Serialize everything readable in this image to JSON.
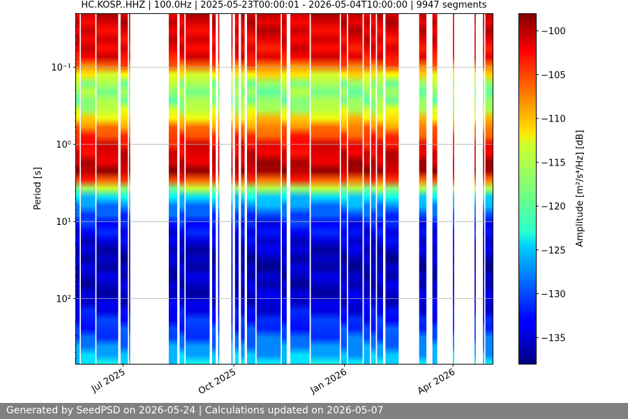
{
  "footer": {
    "text": "Generated by SeedPSD on 2026-05-24 | Calculations updated on 2026-05-07"
  },
  "chart_data": {
    "type": "heatmap",
    "title": "HC.KOSP..HHZ | 100.0Hz | 2025-05-23T00:00:01 - 2026-05-04T10:00:00 | 9947 segments",
    "xlabel": "",
    "ylabel": "Period [s]",
    "x_type": "date",
    "xlim": [
      "2025-05-23",
      "2026-05-04"
    ],
    "x_ticks": [
      {
        "date": "2025-07-01",
        "label": "Jul 2025"
      },
      {
        "date": "2025-10-01",
        "label": "Oct 2025"
      },
      {
        "date": "2026-01-01",
        "label": "Jan 2026"
      },
      {
        "date": "2026-04-01",
        "label": "Apr 2026"
      }
    ],
    "y_scale": "log",
    "y_inverted": true,
    "ylim": [
      0.02,
      700
    ],
    "y_ticks": [
      {
        "value": 0.1,
        "label": "10⁻¹"
      },
      {
        "value": 1,
        "label": "10⁰"
      },
      {
        "value": 10,
        "label": "10¹"
      },
      {
        "value": 100,
        "label": "10²"
      }
    ],
    "grid": "horizontal",
    "colormap": "jet",
    "colorbar": {
      "label": "Amplitude [m²/s⁴/Hz] [dB]",
      "range": [
        -138,
        -98
      ],
      "ticks": [
        -100,
        -105,
        -110,
        -115,
        -120,
        -125,
        -130,
        -135
      ]
    },
    "data_segments": [
      [
        "2025-05-23",
        "2025-05-26"
      ],
      [
        "2025-05-27",
        "2025-06-08"
      ],
      [
        "2025-06-09",
        "2025-06-27"
      ],
      [
        "2025-06-29",
        "2025-07-05"
      ],
      [
        "2025-07-06",
        "2025-07-07"
      ],
      [
        "2025-08-08",
        "2025-08-15"
      ],
      [
        "2025-08-17",
        "2025-08-21"
      ],
      [
        "2025-08-22",
        "2025-09-11"
      ],
      [
        "2025-09-13",
        "2025-09-16"
      ],
      [
        "2025-09-18",
        "2025-09-19"
      ],
      [
        "2025-09-29",
        "2025-09-30"
      ],
      [
        "2025-10-02",
        "2025-10-05"
      ],
      [
        "2025-10-07",
        "2025-10-10"
      ],
      [
        "2025-10-12",
        "2025-10-19"
      ],
      [
        "2025-10-20",
        "2025-11-09"
      ],
      [
        "2025-11-10",
        "2025-11-14"
      ],
      [
        "2025-11-17",
        "2025-12-03"
      ],
      [
        "2025-12-04",
        "2025-12-28"
      ],
      [
        "2025-12-29",
        "2026-01-03"
      ],
      [
        "2026-01-04",
        "2026-01-16"
      ],
      [
        "2026-01-17",
        "2026-01-22"
      ],
      [
        "2026-01-23",
        "2026-01-27"
      ],
      [
        "2026-01-28",
        "2026-02-02"
      ],
      [
        "2026-02-04",
        "2026-02-15"
      ],
      [
        "2026-03-04",
        "2026-03-10"
      ],
      [
        "2026-03-15",
        "2026-03-19"
      ],
      [
        "2026-04-01",
        "2026-04-02"
      ],
      [
        "2026-04-19",
        "2026-04-20"
      ],
      [
        "2026-04-26",
        "2026-04-27"
      ],
      [
        "2026-04-28",
        "2026-05-04"
      ]
    ],
    "amplitude_profile_by_period": [
      {
        "period": 0.02,
        "amplitude": -101
      },
      {
        "period": 0.08,
        "amplitude": -103
      },
      {
        "period": 0.15,
        "amplitude": -117
      },
      {
        "period": 0.3,
        "amplitude": -118
      },
      {
        "period": 0.6,
        "amplitude": -108
      },
      {
        "period": 1.0,
        "amplitude": -103
      },
      {
        "period": 2.5,
        "amplitude": -99
      },
      {
        "period": 3.5,
        "amplitude": -115
      },
      {
        "period": 5,
        "amplitude": -125
      },
      {
        "period": 10,
        "amplitude": -132
      },
      {
        "period": 30,
        "amplitude": -136
      },
      {
        "period": 100,
        "amplitude": -135
      },
      {
        "period": 300,
        "amplitude": -130
      },
      {
        "period": 700,
        "amplitude": -124
      }
    ]
  }
}
